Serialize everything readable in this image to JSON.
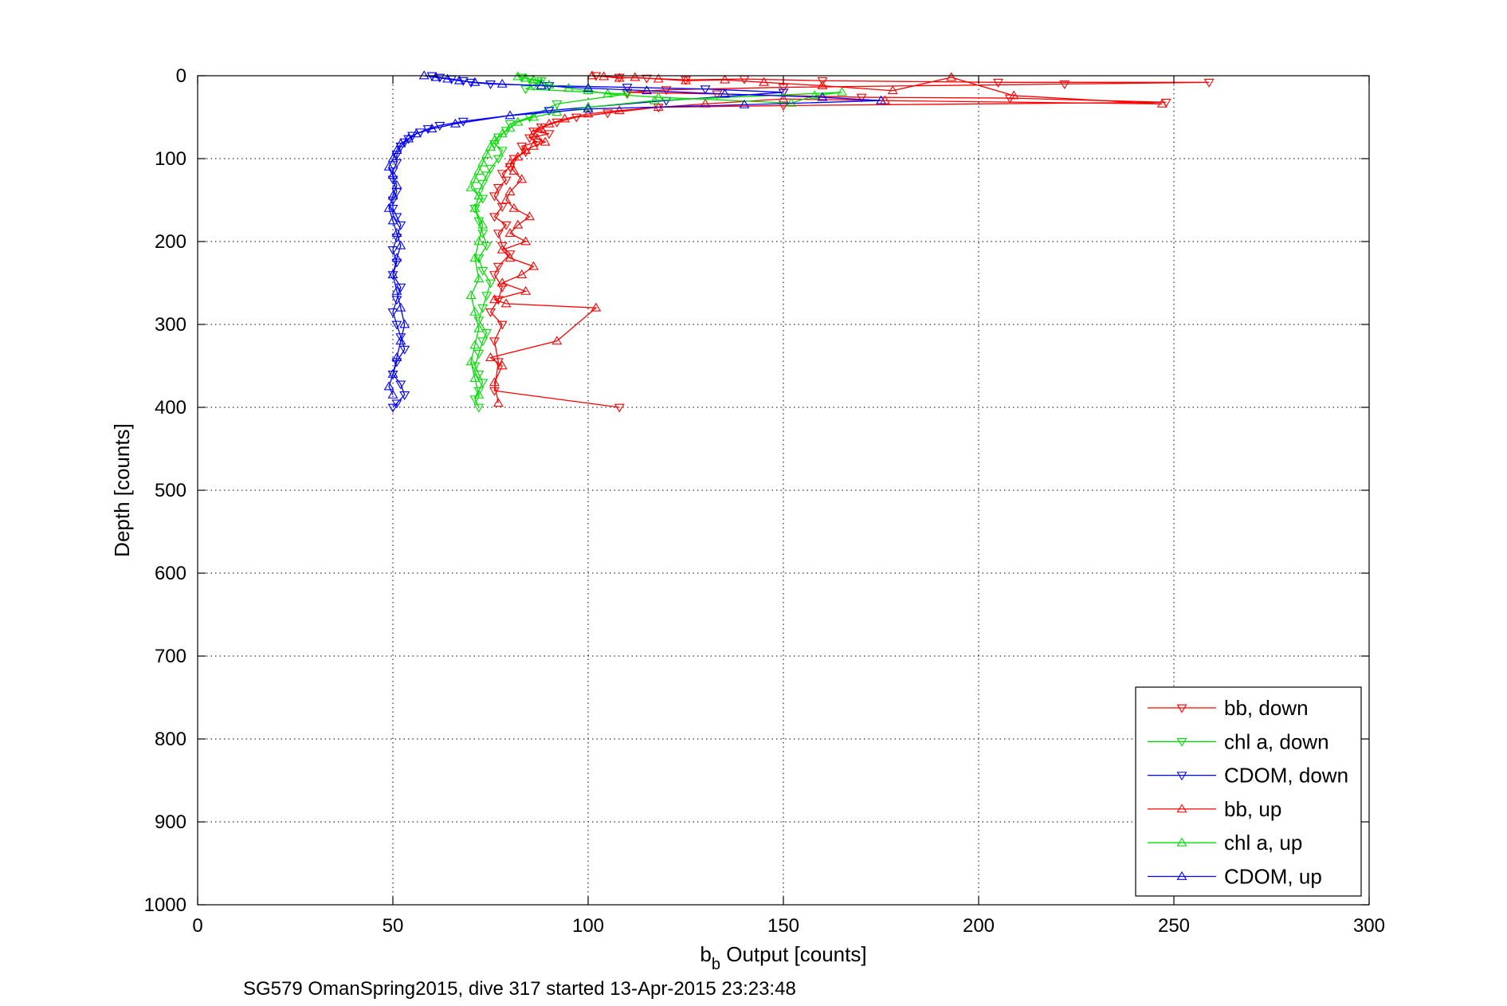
{
  "chart_data": {
    "type": "scatter",
    "xlabel_main": "b",
    "xlabel_sub": "b",
    "xlabel_rest": " Output [counts]",
    "ylabel": "Depth [counts]",
    "subtitle": "SG579 OmanSpring2015, dive 317 started 13-Apr-2015 23:23:48",
    "xlim": [
      0,
      300
    ],
    "ylim": [
      0,
      1000
    ],
    "y_reversed": true,
    "grid": true,
    "x_ticks": [
      0,
      50,
      100,
      150,
      200,
      250,
      300
    ],
    "y_ticks": [
      0,
      100,
      200,
      300,
      400,
      500,
      600,
      700,
      800,
      900,
      1000
    ],
    "legend_position": "bottom-right",
    "series": [
      {
        "name": "bb, down",
        "color": "#ff0000",
        "marker": "triangle-down",
        "x": [
          102,
          108,
          115,
          125,
          140,
          160,
          205,
          259,
          222,
          150,
          120,
          110,
          133,
          170,
          208,
          248,
          150,
          118,
          105,
          97,
          92,
          88,
          86,
          90,
          85,
          87,
          83,
          84,
          81,
          80,
          78,
          79,
          77,
          76,
          78,
          76,
          79,
          77,
          78,
          80,
          77,
          76,
          78,
          77,
          75,
          78,
          76,
          77,
          76,
          108
        ],
        "y": [
          0,
          2,
          3,
          5,
          4,
          6,
          8,
          8,
          10,
          14,
          17,
          20,
          22,
          26,
          27,
          32,
          36,
          38,
          45,
          50,
          56,
          62,
          67,
          70,
          75,
          80,
          85,
          92,
          100,
          110,
          118,
          126,
          135,
          145,
          158,
          170,
          180,
          190,
          205,
          215,
          230,
          240,
          255,
          270,
          285,
          300,
          320,
          345,
          380,
          400
        ]
      },
      {
        "name": "chl a, down",
        "color": "#00dd00",
        "marker": "triangle-down",
        "x": [
          83,
          85,
          88,
          87,
          86,
          84,
          110,
          92,
          85,
          80,
          79,
          77,
          76,
          78,
          77,
          75,
          74,
          73,
          72,
          73,
          71,
          72,
          73,
          74,
          72,
          73,
          75,
          74,
          73,
          72,
          74,
          73,
          72,
          71,
          72,
          73,
          72,
          71,
          72
        ],
        "y": [
          2,
          4,
          6,
          9,
          12,
          16,
          22,
          34,
          50,
          58,
          66,
          74,
          82,
          90,
          100,
          112,
          120,
          130,
          140,
          148,
          160,
          175,
          190,
          205,
          220,
          235,
          250,
          265,
          280,
          295,
          310,
          320,
          335,
          350,
          360,
          370,
          380,
          390,
          400
        ]
      },
      {
        "name": "CDOM, down",
        "color": "#0000ff",
        "marker": "triangle-down",
        "x": [
          60,
          62,
          65,
          68,
          70,
          75,
          90,
          110,
          130,
          150,
          120,
          90,
          68,
          62,
          59,
          57,
          55,
          54,
          53,
          52,
          51,
          51,
          50,
          50,
          51,
          50,
          50,
          51,
          52,
          51,
          50,
          51,
          50,
          52,
          51,
          50,
          51,
          52,
          53,
          51,
          50,
          52,
          53,
          51,
          50
        ],
        "y": [
          0,
          2,
          4,
          6,
          8,
          10,
          12,
          14,
          16,
          20,
          30,
          42,
          55,
          60,
          64,
          68,
          72,
          76,
          80,
          85,
          95,
          105,
          115,
          125,
          140,
          150,
          160,
          170,
          180,
          195,
          210,
          225,
          240,
          255,
          270,
          285,
          300,
          315,
          330,
          345,
          360,
          372,
          385,
          395,
          400
        ]
      },
      {
        "name": "bb, up",
        "color": "#ff0000",
        "marker": "triangle-up",
        "x": [
          101,
          104,
          108,
          112,
          118,
          125,
          135,
          145,
          160,
          178,
          193,
          209,
          247,
          176,
          150,
          130,
          118,
          108,
          100,
          94,
          90,
          88,
          86,
          87,
          89,
          86,
          84,
          82,
          80,
          81,
          83,
          80,
          79,
          81,
          85,
          82,
          80,
          84,
          78,
          80,
          86,
          83,
          78,
          84,
          76,
          79,
          102,
          92,
          75,
          78,
          76,
          77
        ],
        "y": [
          0,
          1,
          3,
          2,
          4,
          6,
          5,
          8,
          12,
          18,
          2,
          24,
          34,
          30,
          28,
          34,
          38,
          42,
          46,
          52,
          58,
          64,
          70,
          76,
          80,
          85,
          90,
          98,
          106,
          115,
          125,
          140,
          150,
          160,
          170,
          180,
          190,
          200,
          210,
          220,
          230,
          240,
          250,
          260,
          270,
          275,
          280,
          320,
          340,
          350,
          370,
          395
        ]
      },
      {
        "name": "chl a, up",
        "color": "#00dd00",
        "marker": "triangle-up",
        "x": [
          82,
          84,
          86,
          88,
          90,
          95,
          100,
          105,
          118,
          152,
          158,
          165,
          117,
          100,
          92,
          86,
          82,
          80,
          78,
          76,
          75,
          74,
          73,
          72,
          71,
          70,
          72,
          71,
          73,
          72,
          71,
          72,
          70,
          71,
          72,
          71,
          70,
          71,
          72
        ],
        "y": [
          1,
          3,
          5,
          8,
          11,
          15,
          18,
          22,
          26,
          33,
          24,
          20,
          30,
          38,
          44,
          50,
          56,
          63,
          70,
          78,
          86,
          95,
          105,
          115,
          125,
          135,
          145,
          160,
          180,
          200,
          220,
          245,
          265,
          285,
          305,
          325,
          345,
          365,
          385
        ]
      },
      {
        "name": "CDOM, up",
        "color": "#0000ff",
        "marker": "triangle-up",
        "x": [
          58,
          61,
          64,
          67,
          71,
          78,
          88,
          100,
          115,
          135,
          160,
          175,
          140,
          100,
          80,
          66,
          60,
          56,
          54,
          52,
          51,
          50,
          49,
          50,
          51,
          50,
          49,
          50,
          51,
          52,
          51,
          50,
          51,
          52,
          53,
          52,
          51,
          50,
          49,
          50
        ],
        "y": [
          0,
          2,
          4,
          6,
          8,
          10,
          12,
          15,
          18,
          22,
          26,
          30,
          35,
          40,
          48,
          58,
          64,
          70,
          76,
          82,
          90,
          100,
          110,
          120,
          132,
          145,
          160,
          175,
          190,
          205,
          220,
          240,
          260,
          280,
          300,
          320,
          340,
          360,
          375,
          385
        ]
      }
    ]
  }
}
